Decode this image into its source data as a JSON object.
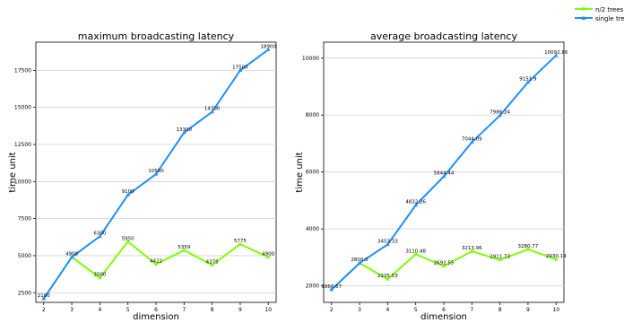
{
  "legend": {
    "position": "top-right",
    "entries": [
      {
        "label": "n/2 trees",
        "color": "#7fff00",
        "marker": "circle"
      },
      {
        "label": "single tree",
        "color": "#1e90ff",
        "marker": "triangle"
      }
    ]
  },
  "chart_data": [
    {
      "type": "line",
      "title": "maximum broadcasting latency",
      "xlabel": "dimension",
      "ylabel": "time unit",
      "x": [
        2,
        3,
        4,
        5,
        6,
        7,
        8,
        9,
        10
      ],
      "xlim": [
        1.72,
        10.28
      ],
      "ylim": [
        1850,
        19400
      ],
      "yticks": [
        2500,
        5000,
        7500,
        10000,
        12500,
        15000,
        17500
      ],
      "ytick_labels": [
        "2500",
        "5000",
        "7500",
        "10000",
        "12500",
        "15000",
        "17500"
      ],
      "grid": "horizontal",
      "series": [
        {
          "name": "n/2 trees",
          "color": "#7fff00",
          "values": [
            2100,
            4900,
            3500,
            5950,
            4422,
            5359,
            4375,
            5775,
            4900
          ],
          "labels": [
            "2100",
            "4900",
            "3500",
            "5950",
            "4422",
            "5359",
            "4375",
            "5775",
            "4900"
          ]
        },
        {
          "name": "single tree",
          "color": "#1e90ff",
          "values": [
            2100,
            4900,
            6300,
            9100,
            10500,
            13300,
            14700,
            17500,
            18900
          ],
          "labels": [
            "2100",
            "4900",
            "6300",
            "9100",
            "10500",
            "13300",
            "14700",
            "17500",
            "18900"
          ]
        }
      ]
    },
    {
      "type": "line",
      "title": "average broadcasting latency",
      "xlabel": "dimension",
      "ylabel": "time unit",
      "x": [
        2,
        3,
        4,
        5,
        6,
        7,
        8,
        9,
        10
      ],
      "xlim": [
        1.72,
        10.28
      ],
      "ylim": [
        1420,
        10560
      ],
      "yticks": [
        2000,
        4000,
        6000,
        8000,
        10000
      ],
      "ytick_labels": [
        "2000",
        "4000",
        "6000",
        "8000",
        "10000"
      ],
      "grid": "horizontal",
      "series": [
        {
          "name": "n/2 trees",
          "color": "#7fff00",
          "values": [
            1866.67,
            2800.0,
            2235.53,
            3110.48,
            2692.55,
            3213.96,
            2911.73,
            3280.77,
            2930.14
          ],
          "labels": [
            "1866.67",
            "2800.0",
            "2235.53",
            "3110.48",
            "2692.55",
            "3213.96",
            "2911.73",
            "3280.77",
            "2930.14"
          ]
        },
        {
          "name": "single tree",
          "color": "#1e90ff",
          "values": [
            1866.67,
            2800.0,
            3453.33,
            4832.26,
            5844.44,
            7044.09,
            7986.24,
            9151.9,
            10092.86
          ],
          "labels": [
            "1866.67",
            "2800.0",
            "3453.33",
            "4832.26",
            "5844.44",
            "7044.09",
            "7986.24",
            "9151.9",
            "10092.86"
          ]
        }
      ]
    }
  ]
}
